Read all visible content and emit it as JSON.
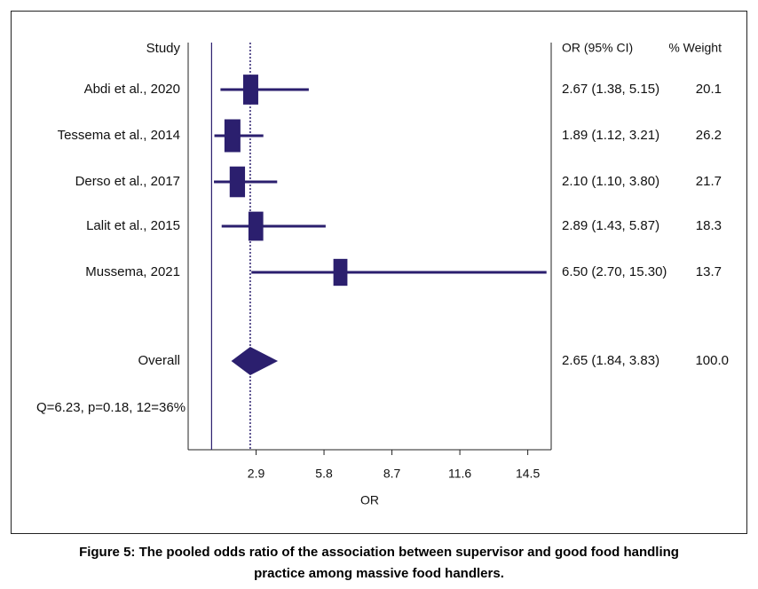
{
  "chart_data": {
    "type": "forest",
    "xlabel": "OR",
    "xlim": [
      0,
      15.5
    ],
    "xticks": [
      2.9,
      5.8,
      8.7,
      11.6,
      14.5
    ],
    "xtick_labels": [
      "2.9",
      "5.8",
      "8.7",
      "11.6",
      "14.5"
    ],
    "null_line": 1,
    "pooled_line": 2.65,
    "headers": {
      "study": "Study",
      "or_ci": "OR (95% CI)",
      "weight": "% Weight"
    },
    "studies": [
      {
        "label": "Abdi et al., 2020",
        "or": 2.67,
        "lower": 1.38,
        "upper": 5.15,
        "weight": 20.1,
        "or_text": "2.67 (1.38, 5.15)",
        "weight_text": "20.1"
      },
      {
        "label": "Tessema et al., 2014",
        "or": 1.89,
        "lower": 1.12,
        "upper": 3.21,
        "weight": 26.2,
        "or_text": "1.89 (1.12, 3.21)",
        "weight_text": "26.2"
      },
      {
        "label": "Derso et al., 2017",
        "or": 2.1,
        "lower": 1.1,
        "upper": 3.8,
        "weight": 21.7,
        "or_text": "2.10 (1.10, 3.80)",
        "weight_text": "21.7"
      },
      {
        "label": "Lalit et al., 2015",
        "or": 2.89,
        "lower": 1.43,
        "upper": 5.87,
        "weight": 18.3,
        "or_text": "2.89 (1.43, 5.87)",
        "weight_text": "18.3"
      },
      {
        "label": "Mussema, 2021",
        "or": 6.5,
        "lower": 2.7,
        "upper": 15.3,
        "weight": 13.7,
        "or_text": "6.50 (2.70, 15.30)",
        "weight_text": "13.7"
      }
    ],
    "overall": {
      "label": "Overall",
      "or": 2.65,
      "lower": 1.84,
      "upper": 3.83,
      "weight": 100.0,
      "or_text": "2.65 (1.84, 3.83)",
      "weight_text": "100.0"
    },
    "heterogeneity": "Q=6.23, p=0.18, 12=36%",
    "colors": {
      "marker": "#2b1f6e",
      "axis": "#222222",
      "null_line": "#2b1f6e"
    }
  },
  "caption": {
    "line1": "Figure 5: The pooled odds ratio of the association between supervisor and good food handling",
    "line2": "practice among massive food handlers."
  }
}
